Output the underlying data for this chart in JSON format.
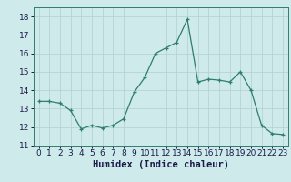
{
  "x": [
    0,
    1,
    2,
    3,
    4,
    5,
    6,
    7,
    8,
    9,
    10,
    11,
    12,
    13,
    14,
    15,
    16,
    17,
    18,
    19,
    20,
    21,
    22,
    23
  ],
  "y": [
    13.4,
    13.4,
    13.3,
    12.9,
    11.9,
    12.1,
    11.95,
    12.1,
    12.45,
    13.9,
    14.7,
    16.0,
    16.3,
    16.6,
    17.85,
    14.45,
    14.6,
    14.55,
    14.45,
    15.0,
    14.0,
    12.1,
    11.65,
    11.6
  ],
  "xlabel": "Humidex (Indice chaleur)",
  "xlim": [
    -0.5,
    23.5
  ],
  "ylim": [
    11,
    18.5
  ],
  "yticks": [
    11,
    12,
    13,
    14,
    15,
    16,
    17,
    18
  ],
  "xticks": [
    0,
    1,
    2,
    3,
    4,
    5,
    6,
    7,
    8,
    9,
    10,
    11,
    12,
    13,
    14,
    15,
    16,
    17,
    18,
    19,
    20,
    21,
    22,
    23
  ],
  "line_color": "#2e7d6e",
  "marker_color": "#2e7d6e",
  "bg_color": "#ceeaea",
  "grid_color": "#b0d0d0",
  "xlabel_fontsize": 7.5,
  "tick_fontsize": 6.5
}
